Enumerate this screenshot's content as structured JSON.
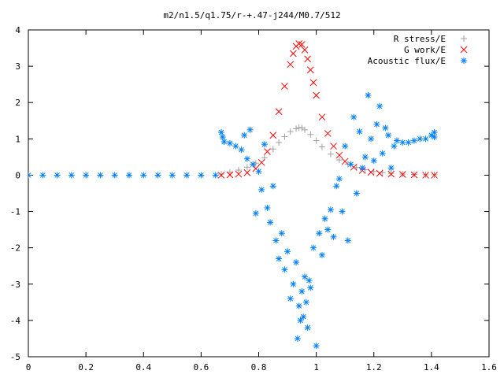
{
  "chart_data": {
    "type": "scatter",
    "title": "m2/n1.5/q1.75/r-+.47-j244/M0.7/512",
    "xlabel": "",
    "ylabel": "",
    "xlim": [
      0,
      1.6
    ],
    "ylim": [
      -5,
      4
    ],
    "x_ticks": [
      0,
      0.2,
      0.4,
      0.6,
      0.8,
      1,
      1.2,
      1.4,
      1.6
    ],
    "x_tick_labels": [
      "0",
      "0.2",
      "0.4",
      "0.6",
      "0.8",
      "1",
      "1.2",
      "1.4",
      "1.6"
    ],
    "y_ticks": [
      -5,
      -4,
      -3,
      -2,
      -1,
      0,
      1,
      2,
      3,
      4
    ],
    "y_tick_labels": [
      "-5",
      "-4",
      "-3",
      "-2",
      "-1",
      "0",
      "1",
      "2",
      "3",
      "4"
    ],
    "grid": false,
    "legend_position": "top-right",
    "series": [
      {
        "name": "R stress/E",
        "marker": "plus",
        "color": "#a0a0a0",
        "x": [
          0.67,
          0.7,
          0.73,
          0.76,
          0.79,
          0.82,
          0.85,
          0.87,
          0.89,
          0.91,
          0.93,
          0.94,
          0.95,
          0.96,
          0.98,
          1.0,
          1.02,
          1.05,
          1.08,
          1.11,
          1.14,
          1.17,
          1.2,
          1.23,
          1.26,
          1.3,
          1.34,
          1.38,
          1.41
        ],
        "y": [
          0.03,
          0.08,
          0.14,
          0.22,
          0.33,
          0.48,
          0.72,
          0.9,
          1.06,
          1.2,
          1.28,
          1.31,
          1.3,
          1.25,
          1.12,
          0.95,
          0.78,
          0.58,
          0.42,
          0.3,
          0.21,
          0.15,
          0.1,
          0.07,
          0.05,
          0.03,
          0.02,
          0.01,
          0.01
        ]
      },
      {
        "name": "G work/E",
        "marker": "cross",
        "color": "#ff0000",
        "x": [
          0.67,
          0.7,
          0.73,
          0.76,
          0.79,
          0.81,
          0.83,
          0.85,
          0.87,
          0.89,
          0.91,
          0.92,
          0.93,
          0.94,
          0.95,
          0.96,
          0.97,
          0.98,
          0.99,
          1.0,
          1.02,
          1.04,
          1.06,
          1.08,
          1.1,
          1.13,
          1.16,
          1.19,
          1.22,
          1.26,
          1.3,
          1.34,
          1.38,
          1.41
        ],
        "y": [
          0.0,
          0.01,
          0.03,
          0.07,
          0.18,
          0.35,
          0.65,
          1.1,
          1.75,
          2.45,
          3.05,
          3.35,
          3.55,
          3.62,
          3.6,
          3.45,
          3.2,
          2.9,
          2.55,
          2.2,
          1.6,
          1.15,
          0.8,
          0.55,
          0.38,
          0.22,
          0.13,
          0.08,
          0.05,
          0.03,
          0.02,
          0.01,
          0.0,
          0.0
        ]
      },
      {
        "name": "Acoustic flux/E",
        "marker": "star",
        "color": "#0080ff",
        "x": [
          0.0,
          0.05,
          0.1,
          0.15,
          0.2,
          0.25,
          0.3,
          0.35,
          0.4,
          0.45,
          0.5,
          0.55,
          0.6,
          0.65,
          0.67,
          0.675,
          0.68,
          0.7,
          0.72,
          0.74,
          0.75,
          0.76,
          0.77,
          0.78,
          0.79,
          0.8,
          0.81,
          0.82,
          0.83,
          0.84,
          0.85,
          0.86,
          0.87,
          0.88,
          0.89,
          0.9,
          0.91,
          0.92,
          0.93,
          0.935,
          0.94,
          0.945,
          0.95,
          0.955,
          0.96,
          0.965,
          0.97,
          0.975,
          0.98,
          0.99,
          1.0,
          1.01,
          1.02,
          1.03,
          1.04,
          1.05,
          1.06,
          1.07,
          1.08,
          1.09,
          1.1,
          1.11,
          1.12,
          1.13,
          1.14,
          1.15,
          1.16,
          1.17,
          1.18,
          1.19,
          1.2,
          1.21,
          1.22,
          1.23,
          1.24,
          1.25,
          1.26,
          1.27,
          1.28,
          1.3,
          1.32,
          1.34,
          1.36,
          1.38,
          1.4,
          1.41,
          1.41
        ],
        "y": [
          0.0,
          0.0,
          0.0,
          0.0,
          0.0,
          0.0,
          0.0,
          0.0,
          0.0,
          0.0,
          0.0,
          0.0,
          0.0,
          0.0,
          1.18,
          1.05,
          0.92,
          0.88,
          0.8,
          0.7,
          1.1,
          0.45,
          1.25,
          0.3,
          -1.05,
          0.1,
          -0.4,
          0.85,
          -0.9,
          -1.3,
          -0.3,
          -1.8,
          -2.3,
          -1.6,
          -2.6,
          -2.1,
          -3.4,
          -3.0,
          -2.4,
          -4.5,
          -3.6,
          -4.0,
          -3.2,
          -3.9,
          -2.8,
          -3.5,
          -4.2,
          -2.9,
          -3.1,
          -2.0,
          -4.7,
          -1.6,
          -2.2,
          -1.2,
          -1.5,
          -0.95,
          -1.7,
          -0.3,
          -0.1,
          -1.0,
          0.8,
          -1.8,
          0.3,
          1.6,
          -0.5,
          1.2,
          0.2,
          0.5,
          2.2,
          1.0,
          0.4,
          1.4,
          1.9,
          0.6,
          1.3,
          1.1,
          0.2,
          0.8,
          0.95,
          0.9,
          0.9,
          0.95,
          1.0,
          1.0,
          1.1,
          1.18,
          1.05
        ]
      }
    ]
  }
}
